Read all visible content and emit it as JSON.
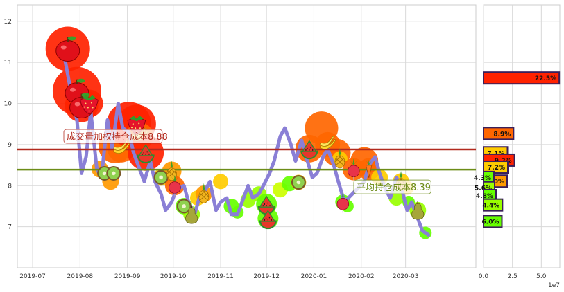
{
  "chart_data": [
    {
      "type": "line",
      "title": "",
      "xlabel": "",
      "ylabel": "",
      "ylim": [
        6.0,
        12.4
      ],
      "xlim": [
        "2019-06-21",
        "2020-04-16"
      ],
      "grid": true,
      "x_ticks": [
        "2019-07-01",
        "2019-08-01",
        "2019-09-01",
        "2019-10-01",
        "2019-11-01",
        "2019-12-01",
        "2020-01-01",
        "2020-02-01",
        "2020-03-01"
      ],
      "x_tick_labels": [
        "2019-07",
        "2019-08",
        "2019-09",
        "2019-10",
        "2019-11",
        "2019-12",
        "2020-01",
        "2020-02",
        "2020-03"
      ],
      "y_ticks": [
        7,
        8,
        9,
        10,
        11,
        12
      ],
      "y_tick_labels": [
        "7",
        "8",
        "9",
        "10",
        "11",
        "12"
      ],
      "line_color": "#8a7fd6",
      "series": [
        {
          "x": [
            "2019-07-22",
            "2019-07-26",
            "2019-07-30",
            "2019-08-02",
            "2019-08-05",
            "2019-08-08",
            "2019-08-12",
            "2019-08-15",
            "2019-08-19",
            "2019-08-22",
            "2019-08-26",
            "2019-08-29",
            "2019-09-02",
            "2019-09-05",
            "2019-09-09",
            "2019-09-12",
            "2019-09-16",
            "2019-09-19",
            "2019-09-23",
            "2019-09-26",
            "2019-09-30",
            "2019-10-03",
            "2019-10-08",
            "2019-10-11",
            "2019-10-15",
            "2019-10-18",
            "2019-10-22",
            "2019-10-25",
            "2019-10-29",
            "2019-11-01",
            "2019-11-05",
            "2019-11-08",
            "2019-11-12",
            "2019-11-15",
            "2019-11-19",
            "2019-11-22",
            "2019-11-26",
            "2019-11-29",
            "2019-12-03",
            "2019-12-06",
            "2019-12-10",
            "2019-12-13",
            "2019-12-17",
            "2019-12-20",
            "2019-12-24",
            "2019-12-27",
            "2019-12-31",
            "2020-01-03",
            "2020-01-07",
            "2020-01-10",
            "2020-01-14",
            "2020-01-17",
            "2020-01-21",
            "2020-02-03",
            "2020-02-06",
            "2020-02-10",
            "2020-02-13",
            "2020-02-17",
            "2020-02-20",
            "2020-02-24",
            "2020-02-27",
            "2020-03-02",
            "2020-03-05",
            "2020-03-09",
            "2020-03-12",
            "2020-03-16"
          ],
          "values": [
            11.1,
            10.3,
            9.6,
            8.3,
            8.7,
            9.8,
            8.4,
            8.2,
            9.6,
            8.9,
            10.0,
            9.4,
            9.3,
            8.8,
            8.4,
            8.1,
            8.6,
            8.1,
            7.8,
            7.4,
            7.6,
            7.9,
            8.0,
            7.6,
            7.3,
            7.7,
            7.9,
            8.1,
            7.4,
            7.6,
            7.7,
            7.3,
            7.3,
            7.6,
            8.0,
            7.7,
            7.8,
            8.0,
            8.3,
            8.6,
            9.2,
            9.4,
            9.0,
            8.6,
            9.1,
            8.7,
            8.2,
            8.3,
            8.7,
            8.9,
            8.5,
            8.1,
            7.6,
            8.1,
            8.5,
            8.7,
            8.3,
            7.9,
            7.7,
            8.2,
            8.0,
            7.4,
            7.6,
            7.2,
            6.9,
            6.8
          ]
        }
      ],
      "reference_lines": [
        {
          "label": "成交量加权持仓成本8.88",
          "value": 8.88,
          "color": "#b22a1e"
        },
        {
          "label": "平均持仓成本8.39",
          "value": 8.39,
          "color": "#6c8c18"
        }
      ],
      "markers": [
        {
          "date": "2019-07-24",
          "value": 11.33,
          "icon": "apple",
          "color": "#ff2200",
          "size": 64
        },
        {
          "date": "2019-07-30",
          "value": 10.3,
          "icon": "apple",
          "color": "#ff2200",
          "size": 70
        },
        {
          "date": "2019-08-02",
          "value": 9.95,
          "icon": "apple",
          "color": "#ff2200",
          "size": 48
        },
        {
          "date": "2019-08-07",
          "value": 10.0,
          "icon": "strawberry",
          "color": "#ff2200",
          "size": 40
        },
        {
          "date": "2019-08-14",
          "value": 8.4,
          "icon": "",
          "color": "#ff9900",
          "size": 24
        },
        {
          "date": "2019-08-17",
          "value": 8.3,
          "icon": "kiwi",
          "color": "#ffcc00",
          "size": 18
        },
        {
          "date": "2019-08-21",
          "value": 8.1,
          "icon": "",
          "color": "#ff9900",
          "size": 24
        },
        {
          "date": "2019-08-23",
          "value": 8.3,
          "icon": "kiwi",
          "color": "#ffcc00",
          "size": 18
        },
        {
          "date": "2019-08-24",
          "value": 8.95,
          "icon": "",
          "color": "#ff6600",
          "size": 48
        },
        {
          "date": "2019-08-28",
          "value": 8.9,
          "icon": "banana",
          "color": "#ff6600",
          "size": 40
        },
        {
          "date": "2019-09-02",
          "value": 9.5,
          "icon": "",
          "color": "#ff2200",
          "size": 64
        },
        {
          "date": "2019-09-07",
          "value": 9.5,
          "icon": "strawberry",
          "color": "#ff2200",
          "size": 56
        },
        {
          "date": "2019-09-09",
          "value": 9.2,
          "icon": "banana",
          "color": "#ff6600",
          "size": 40
        },
        {
          "date": "2019-09-13",
          "value": 8.8,
          "icon": "watermelon",
          "color": "#ff2200",
          "size": 52
        },
        {
          "date": "2019-09-23",
          "value": 8.2,
          "icon": "kiwi",
          "color": "#ffcc00",
          "size": 24
        },
        {
          "date": "2019-09-30",
          "value": 8.35,
          "icon": "pineapple",
          "color": "#ff9900",
          "size": 28
        },
        {
          "date": "2019-10-02",
          "value": 8.0,
          "icon": "radish",
          "color": "#ff6600",
          "size": 28
        },
        {
          "date": "2019-10-08",
          "value": 7.5,
          "icon": "kiwi",
          "color": "#66ff00",
          "size": 24
        },
        {
          "date": "2019-10-13",
          "value": 7.3,
          "icon": "pear",
          "color": "#99ff00",
          "size": 24
        },
        {
          "date": "2019-10-17",
          "value": 7.7,
          "icon": "",
          "color": "#ffcc00",
          "size": 22
        },
        {
          "date": "2019-10-21",
          "value": 7.8,
          "icon": "pineapple",
          "color": "#ff9900",
          "size": 24
        },
        {
          "date": "2019-11-01",
          "value": 8.1,
          "icon": "",
          "color": "#ffcc00",
          "size": 22
        },
        {
          "date": "2019-11-08",
          "value": 7.5,
          "icon": "",
          "color": "#66ff00",
          "size": 22
        },
        {
          "date": "2019-11-12",
          "value": 7.35,
          "icon": "",
          "color": "#66ff00",
          "size": 18
        },
        {
          "date": "2019-11-19",
          "value": 7.65,
          "icon": "",
          "color": "#99ff00",
          "size": 22
        },
        {
          "date": "2019-11-26",
          "value": 7.8,
          "icon": "",
          "color": "#99ff00",
          "size": 22
        },
        {
          "date": "2019-12-01",
          "value": 7.55,
          "icon": "watermelon",
          "color": "#66ff00",
          "size": 30
        },
        {
          "date": "2019-12-02",
          "value": 7.2,
          "icon": "watermelon",
          "color": "#66ff00",
          "size": 30
        },
        {
          "date": "2019-12-10",
          "value": 7.9,
          "icon": "",
          "color": "#ccff00",
          "size": 22
        },
        {
          "date": "2019-12-16",
          "value": 8.05,
          "icon": "",
          "color": "#66ff00",
          "size": 22
        },
        {
          "date": "2019-12-22",
          "value": 8.08,
          "icon": "kiwi",
          "color": "#ffcc00",
          "size": 22
        },
        {
          "date": "2019-12-29",
          "value": 8.9,
          "icon": "watermelon",
          "color": "#ff6600",
          "size": 40
        },
        {
          "date": "2020-01-06",
          "value": 9.4,
          "icon": "",
          "color": "#ff6600",
          "size": 48
        },
        {
          "date": "2020-01-10",
          "value": 9.0,
          "icon": "banana",
          "color": "#ff6600",
          "size": 36
        },
        {
          "date": "2020-01-16",
          "value": 8.8,
          "icon": "",
          "color": "#ff6600",
          "size": 40
        },
        {
          "date": "2020-01-18",
          "value": 8.65,
          "icon": "pineapple",
          "color": "#ffcc00",
          "size": 22
        },
        {
          "date": "2020-01-20",
          "value": 7.6,
          "icon": "radish",
          "color": "#66ff00",
          "size": 22
        },
        {
          "date": "2020-01-23",
          "value": 7.5,
          "icon": "",
          "color": "#66ff00",
          "size": 18
        },
        {
          "date": "2020-01-27",
          "value": 8.4,
          "icon": "radish",
          "color": "#ff6600",
          "size": 32
        },
        {
          "date": "2020-02-03",
          "value": 8.6,
          "icon": "",
          "color": "#ff6600",
          "size": 40
        },
        {
          "date": "2020-02-06",
          "value": 8.4,
          "icon": "carrot",
          "color": "#ff6600",
          "size": 32
        },
        {
          "date": "2020-02-13",
          "value": 8.2,
          "icon": "",
          "color": "#ffcc00",
          "size": 24
        },
        {
          "date": "2020-02-24",
          "value": 7.7,
          "icon": "",
          "color": "#99ff00",
          "size": 22
        },
        {
          "date": "2020-02-27",
          "value": 8.1,
          "icon": "pineapple",
          "color": "#ffcc00",
          "size": 24
        },
        {
          "date": "2020-03-02",
          "value": 7.95,
          "icon": "",
          "color": "#ffcc00",
          "size": 20
        },
        {
          "date": "2020-03-03",
          "value": 7.6,
          "icon": "",
          "color": "#66ff00",
          "size": 18
        },
        {
          "date": "2020-03-09",
          "value": 7.4,
          "icon": "pear",
          "color": "#99ff00",
          "size": 24
        },
        {
          "date": "2020-03-14",
          "value": 6.85,
          "icon": "",
          "color": "#66ff00",
          "size": 18
        }
      ]
    },
    {
      "type": "bar",
      "orientation": "horizontal",
      "title": "",
      "xlabel": "",
      "ylabel": "",
      "xlim": [
        0,
        6.6
      ],
      "ylim": [
        6.0,
        12.4
      ],
      "x_ticks": [
        0,
        2.5,
        5.0
      ],
      "x_tick_labels": [
        "0.0",
        "2.5",
        "5.0"
      ],
      "x_multiplier_label": "1e7",
      "bar_edge_color": "#3a1f5a",
      "bars": [
        {
          "price": 10.62,
          "value": 6.55,
          "label": "22.5%",
          "color": "#ff2200"
        },
        {
          "price": 9.27,
          "value": 2.6,
          "label": "8.9%",
          "color": "#ff6600"
        },
        {
          "price": 8.8,
          "value": 2.07,
          "label": "7.1%",
          "color": "#ffcc00"
        },
        {
          "price": 8.62,
          "value": 2.68,
          "label": "9.2%",
          "color": "#ff2200"
        },
        {
          "price": 8.45,
          "value": 2.1,
          "label": "7.2%",
          "color": "#ffcc00"
        },
        {
          "price": 8.11,
          "value": 2.04,
          "label": "7.0%",
          "color": "#ff9900"
        },
        {
          "price": 8.2,
          "value": 0.9,
          "label": "4.3%",
          "color": "#66ff00"
        },
        {
          "price": 7.95,
          "value": 0.96,
          "label": "5.6%",
          "color": "#99ff00"
        },
        {
          "price": 7.76,
          "value": 1.08,
          "label": "4.8%",
          "color": "#66ff00"
        },
        {
          "price": 7.53,
          "value": 1.64,
          "label": "4.4%",
          "color": "#99ff00"
        },
        {
          "price": 7.13,
          "value": 1.59,
          "label": "6.0%",
          "color": "#66ff00"
        }
      ]
    }
  ]
}
